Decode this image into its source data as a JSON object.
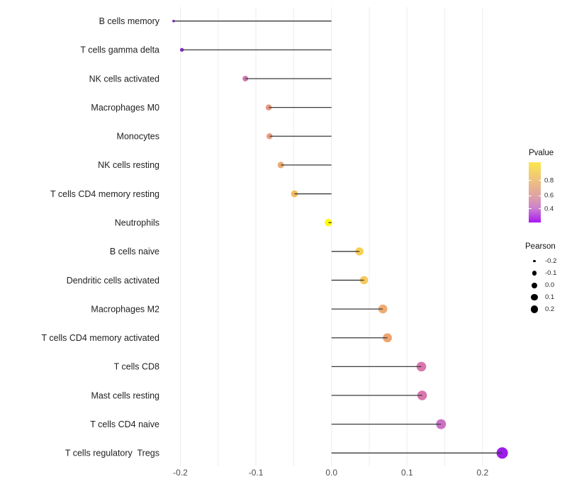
{
  "chart_data": {
    "type": "scatter",
    "variant": "lollipop",
    "orientation": "horizontal",
    "title": "",
    "xlabel": "",
    "ylabel": "",
    "grid": "on",
    "x_axis": {
      "tick_labels": [
        "-0.2",
        "-0.1",
        "0.0",
        "0.1",
        "0.2"
      ],
      "tick_values": [
        -0.2,
        -0.1,
        0.0,
        0.1,
        0.2
      ],
      "range": [
        -0.23,
        0.25
      ],
      "gridline_step": 0.05,
      "gridline_range": [
        -0.2,
        0.2
      ]
    },
    "size_encoding": "Pearson",
    "color_encoding": "Pvalue",
    "points": [
      {
        "label": "B cells memory",
        "pearson": -0.209,
        "pvalue_approx": 0.3,
        "color": "#9227dd",
        "radius": 1.8
      },
      {
        "label": "T cells gamma delta",
        "pearson": -0.198,
        "pvalue_approx": 0.3,
        "color": "#8d2ad8",
        "radius": 2.7
      },
      {
        "label": "NK cells activated",
        "pearson": -0.114,
        "pvalue_approx": 0.53,
        "color": "#d177ae",
        "radius": 4.0
      },
      {
        "label": "Macrophages M0",
        "pearson": -0.083,
        "pvalue_approx": 0.68,
        "color": "#e8987f",
        "radius": 4.3
      },
      {
        "label": "Monocytes",
        "pearson": -0.082,
        "pvalue_approx": 0.7,
        "color": "#ea9e80",
        "radius": 4.3
      },
      {
        "label": "NK cells resting",
        "pearson": -0.067,
        "pvalue_approx": 0.75,
        "color": "#ecab74",
        "radius": 4.6
      },
      {
        "label": "T cells CD4 memory resting",
        "pearson": -0.049,
        "pvalue_approx": 0.8,
        "color": "#f1bd5f",
        "radius": 4.9
      },
      {
        "label": "Neutrophils",
        "pearson": -0.004,
        "pvalue_approx": 0.97,
        "color": "#fdfd0c",
        "radius": 5.3
      },
      {
        "label": "B cells naive",
        "pearson": 0.037,
        "pvalue_approx": 0.85,
        "color": "#f7cf52",
        "radius": 5.7
      },
      {
        "label": "Dendritic cells activated",
        "pearson": 0.043,
        "pvalue_approx": 0.83,
        "color": "#f5c95b",
        "radius": 5.8
      },
      {
        "label": "Macrophages M2",
        "pearson": 0.068,
        "pvalue_approx": 0.75,
        "color": "#f0ac72",
        "radius": 6.3
      },
      {
        "label": "T cells CD4 memory activated",
        "pearson": 0.074,
        "pvalue_approx": 0.72,
        "color": "#eea470",
        "radius": 6.4
      },
      {
        "label": "T cells CD8",
        "pearson": 0.119,
        "pvalue_approx": 0.55,
        "color": "#d977ad",
        "radius": 6.8
      },
      {
        "label": "Mast cells resting",
        "pearson": 0.12,
        "pvalue_approx": 0.55,
        "color": "#d876ae",
        "radius": 6.8
      },
      {
        "label": "T cells CD4 naive",
        "pearson": 0.145,
        "pvalue_approx": 0.45,
        "color": "#cb70c5",
        "radius": 7.0
      },
      {
        "label": "T cells regulatory  Tregs",
        "pearson": 0.226,
        "pvalue_approx": 0.28,
        "color": "#9c1ce9",
        "radius": 8.0
      }
    ],
    "stem_color": "#3a3a3a",
    "gridline_color": "#ececec"
  },
  "legend": {
    "pvalue": {
      "title": "Pvalue",
      "tick_labels": [
        "0.8",
        "0.6",
        "0.4"
      ],
      "tick_positions_pct": [
        30.2,
        55.6,
        77.3
      ],
      "gradient_stops": [
        {
          "pct": 0,
          "color": "#fbe74c"
        },
        {
          "pct": 30,
          "color": "#eec17f"
        },
        {
          "pct": 56,
          "color": "#dfa3a4"
        },
        {
          "pct": 77,
          "color": "#cb7fd0"
        },
        {
          "pct": 100,
          "color": "#a818f0"
        }
      ]
    },
    "pearson": {
      "title": "Pearson",
      "entries": [
        {
          "label": "-0.2",
          "radius": 1.7
        },
        {
          "label": "-0.1",
          "radius": 3.3
        },
        {
          "label": "0.0",
          "radius": 4.0
        },
        {
          "label": "0.1",
          "radius": 4.7
        },
        {
          "label": "0.2",
          "radius": 5.3
        }
      ]
    }
  }
}
